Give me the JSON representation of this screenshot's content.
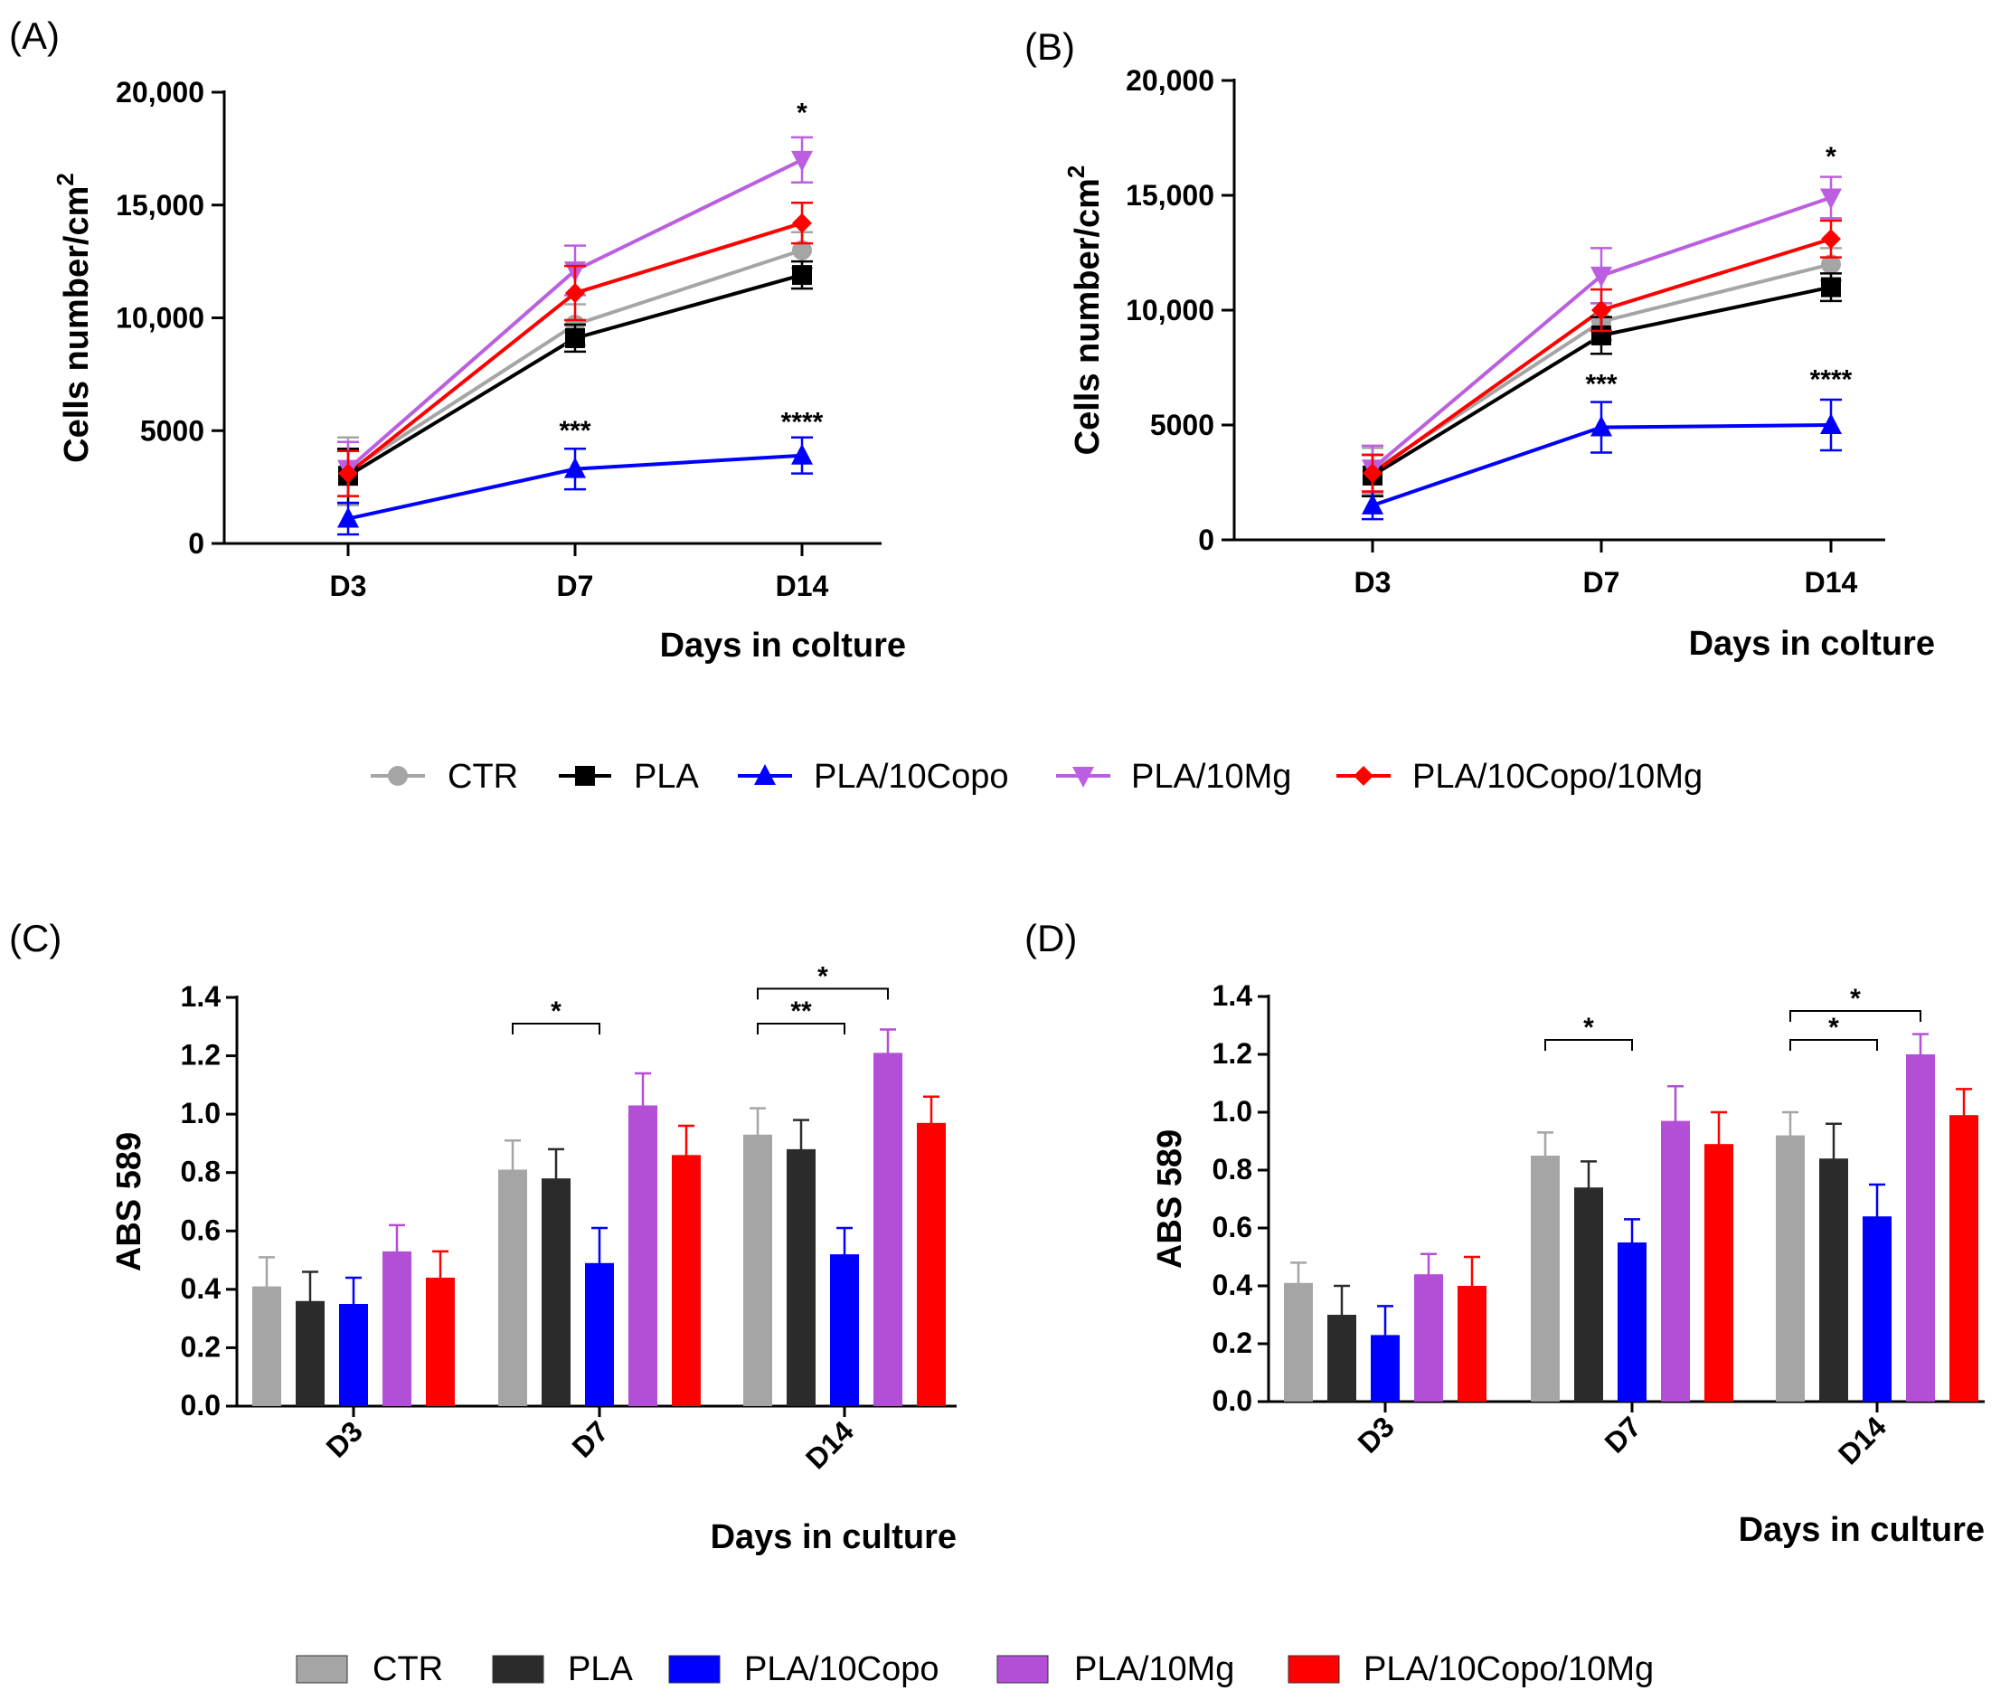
{
  "legend_line": [
    {
      "name": "CTR",
      "color": "#a5a5a5",
      "marker": "circle"
    },
    {
      "name": "PLA",
      "color": "#000000",
      "marker": "square"
    },
    {
      "name": "PLA/10Copo",
      "color": "#0000ff",
      "marker": "triangle-up"
    },
    {
      "name": "PLA/10Mg",
      "color": "#bb5fe0",
      "marker": "triangle-down"
    },
    {
      "name": "PLA/10Copo/10Mg",
      "color": "#ff0000",
      "marker": "diamond"
    }
  ],
  "legend_bar": [
    {
      "name": "CTR",
      "color": "#a5a5a5"
    },
    {
      "name": "PLA",
      "color": "#2b2b2b"
    },
    {
      "name": "PLA/10Copo",
      "color": "#0000ff"
    },
    {
      "name": "PLA/10Mg",
      "color": "#b24fd6"
    },
    {
      "name": "PLA/10Copo/10Mg",
      "color": "#ff0000"
    }
  ],
  "chart_data": [
    {
      "panel": "(A)",
      "type": "line",
      "categories": [
        "D3",
        "D7",
        "D14"
      ],
      "xlabel": "Days in colture",
      "ylabel_main": "Cells number/cm",
      "ylabel_sup": "2",
      "ylim": [
        0,
        20000
      ],
      "yticks": [
        0,
        5000,
        10000,
        15000,
        20000
      ],
      "ytick_labels": [
        "0",
        "5000",
        "10,000",
        "15,000",
        "20,000"
      ],
      "series": [
        {
          "name": "CTR",
          "values": [
            3200,
            9700,
            13000
          ],
          "errors": [
            1500,
            900,
            800
          ]
        },
        {
          "name": "PLA",
          "values": [
            3000,
            9100,
            11900
          ],
          "errors": [
            1200,
            600,
            600
          ]
        },
        {
          "name": "PLA/10Copo",
          "values": [
            1100,
            3300,
            3900
          ],
          "errors": [
            700,
            900,
            800
          ]
        },
        {
          "name": "PLA/10Mg",
          "values": [
            3300,
            12100,
            17000
          ],
          "errors": [
            1200,
            1100,
            1000
          ]
        },
        {
          "name": "PLA/10Copo/10Mg",
          "values": [
            3100,
            11100,
            14200
          ],
          "errors": [
            1000,
            1200,
            900
          ]
        }
      ],
      "annotations": [
        {
          "text": "*",
          "category": "D14",
          "value": 18700
        },
        {
          "text": "***",
          "category": "D7",
          "value": 4600
        },
        {
          "text": "****",
          "category": "D14",
          "value": 5000
        }
      ]
    },
    {
      "panel": "(B)",
      "type": "line",
      "categories": [
        "D3",
        "D7",
        "D14"
      ],
      "xlabel": "Days in colture",
      "ylabel_main": "Cells number/cm",
      "ylabel_sup": "2",
      "ylim": [
        0,
        20000
      ],
      "yticks": [
        0,
        5000,
        10000,
        15000,
        20000
      ],
      "ytick_labels": [
        "0",
        "5000",
        "10,000",
        "15,000",
        "20,000"
      ],
      "series": [
        {
          "name": "CTR",
          "values": [
            3000,
            9500,
            12000
          ],
          "errors": [
            1000,
            800,
            700
          ]
        },
        {
          "name": "PLA",
          "values": [
            2800,
            8900,
            11000
          ],
          "errors": [
            900,
            800,
            600
          ]
        },
        {
          "name": "PLA/10Copo",
          "values": [
            1500,
            4900,
            5000
          ],
          "errors": [
            600,
            1100,
            1100
          ]
        },
        {
          "name": "PLA/10Mg",
          "values": [
            3100,
            11500,
            14900
          ],
          "errors": [
            1000,
            1200,
            900
          ]
        },
        {
          "name": "PLA/10Copo/10Mg",
          "values": [
            2900,
            10000,
            13100
          ],
          "errors": [
            800,
            900,
            800
          ]
        }
      ],
      "annotations": [
        {
          "text": "*",
          "category": "D14",
          "value": 16300
        },
        {
          "text": "***",
          "category": "D7",
          "value": 6400
        },
        {
          "text": "****",
          "category": "D14",
          "value": 6600
        }
      ]
    },
    {
      "panel": "(C)",
      "type": "bar",
      "categories": [
        "D3",
        "D7",
        "D14"
      ],
      "xlabel": "Days in culture",
      "ylabel": "ABS 589",
      "ylim": [
        0,
        1.4
      ],
      "yticks": [
        0,
        0.2,
        0.4,
        0.6,
        0.8,
        1.0,
        1.2,
        1.4
      ],
      "ytick_labels": [
        "0.0",
        "0.2",
        "0.4",
        "0.6",
        "0.8",
        "1.0",
        "1.2",
        "1.4"
      ],
      "series": [
        {
          "name": "CTR",
          "values": [
            0.41,
            0.81,
            0.93
          ],
          "errors": [
            0.1,
            0.1,
            0.09
          ]
        },
        {
          "name": "PLA",
          "values": [
            0.36,
            0.78,
            0.88
          ],
          "errors": [
            0.1,
            0.1,
            0.1
          ]
        },
        {
          "name": "PLA/10Copo",
          "values": [
            0.35,
            0.49,
            0.52
          ],
          "errors": [
            0.09,
            0.12,
            0.09
          ]
        },
        {
          "name": "PLA/10Mg",
          "values": [
            0.53,
            1.03,
            1.21
          ],
          "errors": [
            0.09,
            0.11,
            0.08
          ]
        },
        {
          "name": "PLA/10Copo/10Mg",
          "values": [
            0.44,
            0.86,
            0.97
          ],
          "errors": [
            0.09,
            0.1,
            0.09
          ]
        }
      ],
      "brackets": [
        {
          "text": "*",
          "category": "D7",
          "from": 0,
          "to": 2,
          "level": 1.31
        },
        {
          "text": "**",
          "category": "D14",
          "from": 0,
          "to": 2,
          "level": 1.31
        },
        {
          "text": "*",
          "category": "D14",
          "from": 0,
          "to": 3,
          "level": 1.43
        }
      ]
    },
    {
      "panel": "(D)",
      "type": "bar",
      "categories": [
        "D3",
        "D7",
        "D14"
      ],
      "xlabel": "Days in culture",
      "ylabel": "ABS 589",
      "ylim": [
        0,
        1.4
      ],
      "yticks": [
        0,
        0.2,
        0.4,
        0.6,
        0.8,
        1.0,
        1.2,
        1.4
      ],
      "ytick_labels": [
        "0.0",
        "0.2",
        "0.4",
        "0.6",
        "0.8",
        "1.0",
        "1.2",
        "1.4"
      ],
      "series": [
        {
          "name": "CTR",
          "values": [
            0.41,
            0.85,
            0.92
          ],
          "errors": [
            0.07,
            0.08,
            0.08
          ]
        },
        {
          "name": "PLA",
          "values": [
            0.3,
            0.74,
            0.84
          ],
          "errors": [
            0.1,
            0.09,
            0.12
          ]
        },
        {
          "name": "PLA/10Copo",
          "values": [
            0.23,
            0.55,
            0.64
          ],
          "errors": [
            0.1,
            0.08,
            0.11
          ]
        },
        {
          "name": "PLA/10Mg",
          "values": [
            0.44,
            0.97,
            1.2
          ],
          "errors": [
            0.07,
            0.12,
            0.07
          ]
        },
        {
          "name": "PLA/10Copo/10Mg",
          "values": [
            0.4,
            0.89,
            0.99
          ],
          "errors": [
            0.1,
            0.11,
            0.09
          ]
        }
      ],
      "brackets": [
        {
          "text": "*",
          "category": "D7",
          "from": 0,
          "to": 2,
          "level": 1.25
        },
        {
          "text": "*",
          "category": "D14",
          "from": 0,
          "to": 2,
          "level": 1.25
        },
        {
          "text": "*",
          "category": "D14",
          "from": 0,
          "to": 3,
          "level": 1.35
        }
      ]
    }
  ]
}
